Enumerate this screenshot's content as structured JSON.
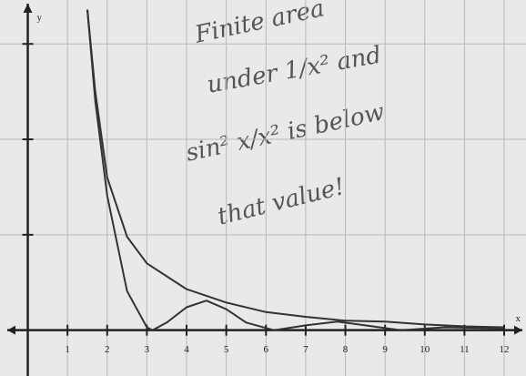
{
  "chart_data": {
    "type": "line",
    "x_label": "x",
    "y_label": "y",
    "annotations": [
      "Finite area",
      "under 1/x² and",
      "sin² x/x² is below",
      "that value!"
    ],
    "xlim": [
      -0.7,
      12.55
    ],
    "ylim": [
      -0.48,
      3.46
    ],
    "xticks": [
      1,
      2,
      3,
      4,
      5,
      6,
      7,
      8,
      9,
      10,
      11,
      12
    ],
    "yticks": [
      1,
      2,
      3
    ],
    "grid": true,
    "series": [
      {
        "color": "#333333",
        "x": [
          1.5,
          1.7,
          2,
          2.5,
          3,
          4,
          5,
          6,
          7,
          8,
          9,
          10,
          11,
          12
        ],
        "values": [
          3.36,
          2.5,
          1.6,
          0.98,
          0.7,
          0.43,
          0.29,
          0.19,
          0.14,
          0.1,
          0.09,
          0.06,
          0.04,
          0.03
        ]
      },
      {
        "color": "#333333",
        "x": [
          1.5,
          1.7,
          2,
          2.5,
          3,
          3.14,
          3.5,
          4,
          4.5,
          5,
          5.5,
          6.2,
          7,
          7.8,
          8.5,
          9.4,
          10.5,
          12
        ],
        "values": [
          3.36,
          2.4,
          1.41,
          0.41,
          0.03,
          0,
          0.08,
          0.24,
          0.31,
          0.22,
          0.08,
          0,
          0.05,
          0.09,
          0.05,
          0,
          0.03,
          0.02
        ]
      }
    ]
  }
}
